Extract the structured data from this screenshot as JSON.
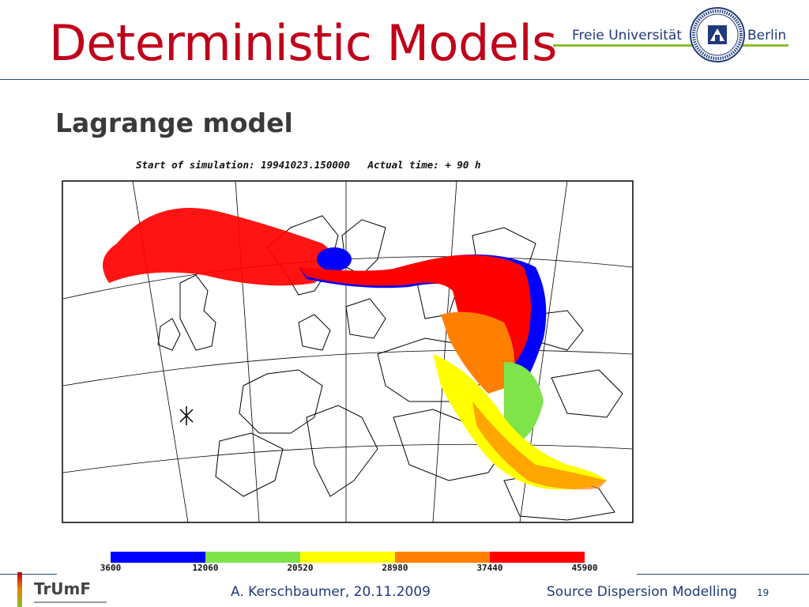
{
  "slide": {
    "title": "Deterministic Models",
    "subtitle": "Lagrange model",
    "logo": {
      "left": "Freie Universität",
      "right": "Berlin"
    },
    "simulation_label": "Start of simulation: 19941023.150000   Actual time: + 90 h",
    "colorbar": {
      "ticks": [
        "3600",
        "12060",
        "20520",
        "28980",
        "37440",
        "45900"
      ],
      "colors": [
        "#0000ff",
        "#7fe34a",
        "#ffff00",
        "#ff8000",
        "#ff0000"
      ]
    },
    "footer": {
      "logo": "TrUmF",
      "author_date": "A. Kerschbaumer, 20.11.2009",
      "course": "Source Dispersion Modelling",
      "page_number": "19"
    }
  },
  "colors": {
    "title_red": "#c0001a",
    "fu_green": "#8cbd2a",
    "fu_blue": "#1f3a7a"
  }
}
